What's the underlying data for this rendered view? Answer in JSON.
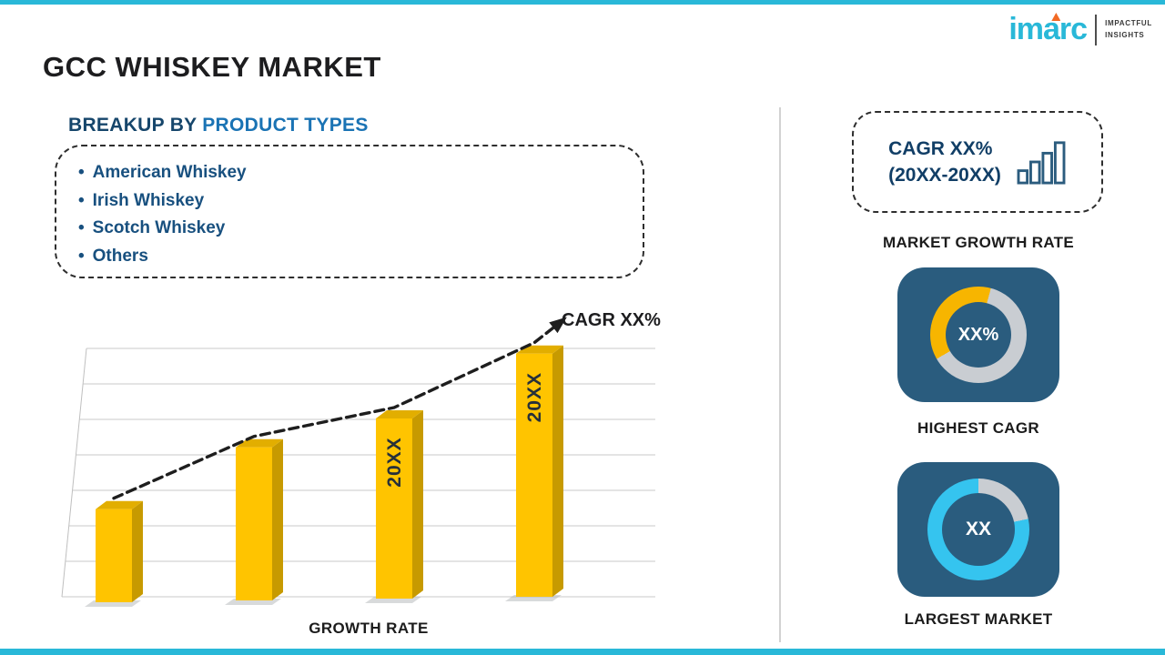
{
  "page": {
    "title": "GCC WHISKEY MARKET"
  },
  "logo": {
    "brand": "imarc",
    "tagline_line1": "IMPACTFUL",
    "tagline_line2": "INSIGHTS"
  },
  "breakup": {
    "heading_prefix": "BREAKUP BY ",
    "heading_highlight": "PRODUCT TYPES",
    "items": [
      "American Whiskey",
      "Irish Whiskey",
      "Scotch Whiskey",
      "Others"
    ]
  },
  "chart_data": {
    "type": "bar",
    "title": "GCC Whiskey Market growth bars with rising dashed CAGR trend arrow",
    "categories": [
      "",
      "",
      "20XX",
      "20XX"
    ],
    "values": [
      31,
      51,
      60,
      81
    ],
    "values_note": "relative bar heights; no numeric axis shown in figure",
    "xlabel": "GROWTH RATE",
    "ylabel": "",
    "trend_label": "CAGR XX%",
    "gridlines": 8,
    "legend": false,
    "bar_color": "#ffc400",
    "bar_side_color": "#c79a00",
    "bar_top_color": "#e2ae00"
  },
  "right_panel": {
    "growth_box": {
      "line1": "CAGR XX%",
      "line2": "(20XX-20XX)"
    },
    "market_growth_label": "MARKET GROWTH RATE",
    "highest_cagr": {
      "value": "XX%",
      "label": "HIGHEST CAGR",
      "segment_color": "#f7b500",
      "track_color": "#c9cdd2",
      "start_deg": 240,
      "segment_deg": 135
    },
    "largest_market": {
      "value": "XX",
      "label": "LARGEST MARKET",
      "segment_color": "#35c4ef",
      "track_color": "#c9cdd2",
      "start_deg": 78,
      "segment_deg": 282
    }
  },
  "colors": {
    "accent_teal": "#29b8d8",
    "tile_navy": "#2a5c7e",
    "heading_navy": "#16466b",
    "heading_blue": "#1a73b4",
    "list_text": "#18507f",
    "dark_text": "#1d1d1f",
    "divider": "#d2d2d2",
    "logo_flame_orange": "#f26a25"
  }
}
